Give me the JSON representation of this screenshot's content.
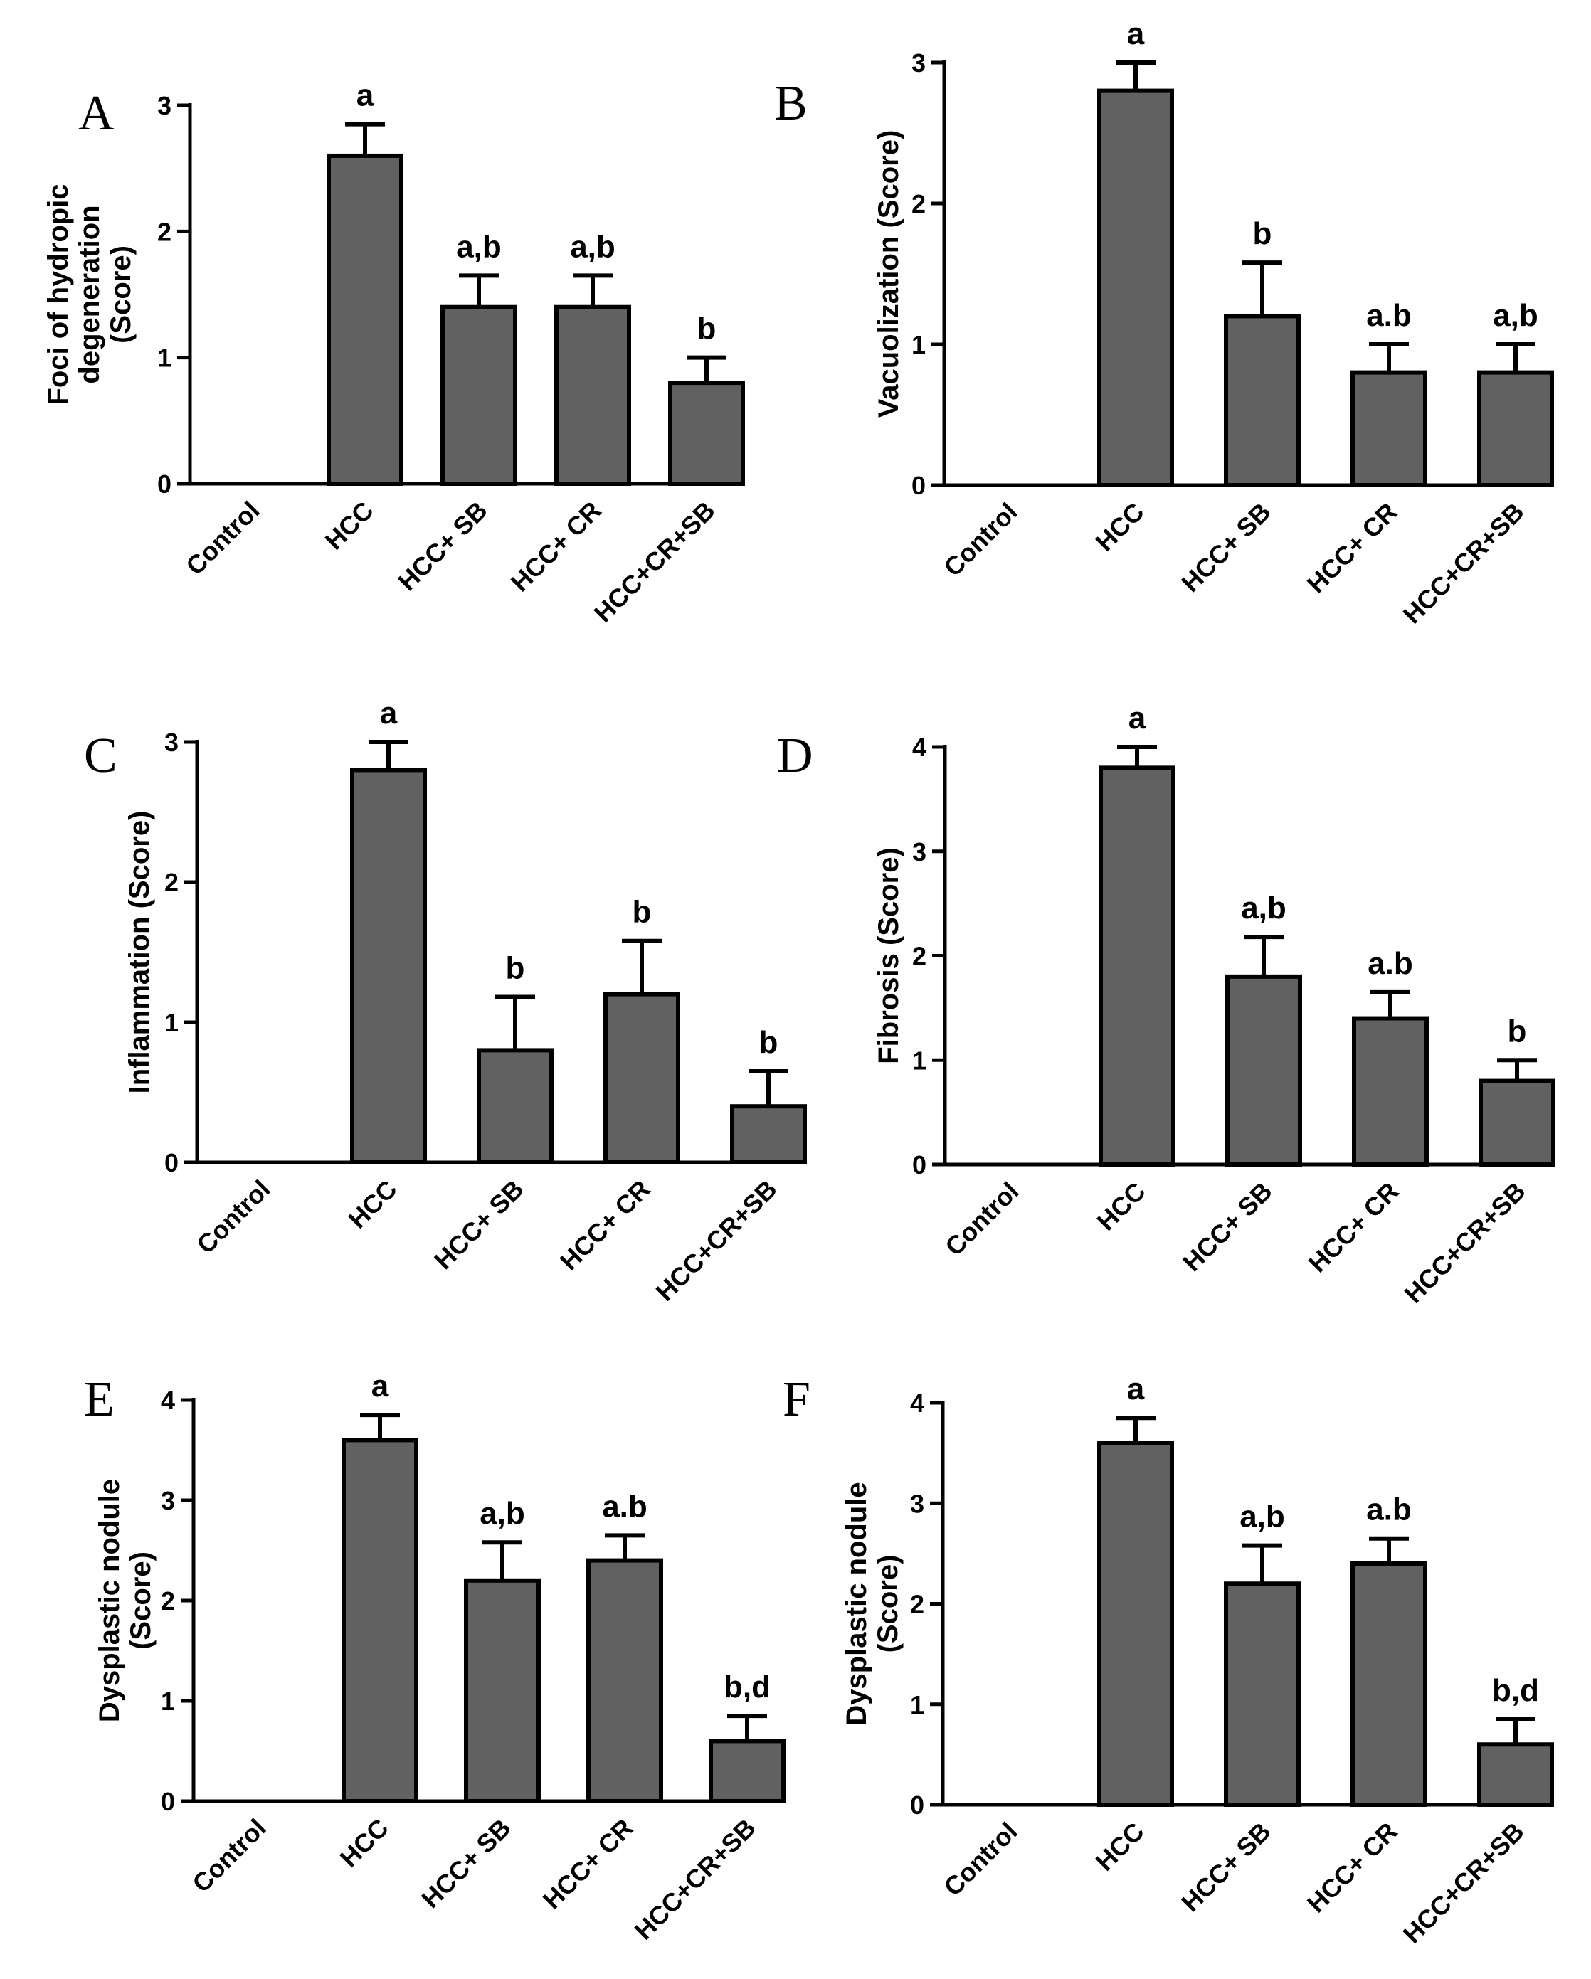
{
  "chart_data": [
    {
      "type": "bar",
      "panel": "A",
      "categories": [
        "Control",
        "HCC",
        "HCC+ SB",
        "HCC+ CR",
        "HCC+CR+SB"
      ],
      "values": [
        0,
        2.6,
        1.4,
        1.4,
        0.8
      ],
      "errors": [
        0,
        0.25,
        0.25,
        0.25,
        0.2
      ],
      "significance": [
        "",
        "a",
        "a,b",
        "a,b",
        "b"
      ],
      "ylabel_lines": [
        "Foci of hydropic",
        "degeneration",
        "(Score)"
      ],
      "ylim": [
        0,
        3
      ],
      "yticks": [
        0,
        1,
        2,
        3
      ]
    },
    {
      "type": "bar",
      "panel": "B",
      "categories": [
        "Control",
        "HCC",
        "HCC+ SB",
        "HCC+ CR",
        "HCC+CR+SB"
      ],
      "values": [
        0,
        2.8,
        1.2,
        0.8,
        0.8
      ],
      "errors": [
        0,
        0.2,
        0.38,
        0.2,
        0.2
      ],
      "significance": [
        "",
        "a",
        "b",
        "a.b",
        "a,b"
      ],
      "ylabel_lines": [
        "Vacuolization (Score)"
      ],
      "ylim": [
        0,
        3
      ],
      "yticks": [
        0,
        1,
        2,
        3
      ]
    },
    {
      "type": "bar",
      "panel": "C",
      "categories": [
        "Control",
        "HCC",
        "HCC+ SB",
        "HCC+ CR",
        "HCC+CR+SB"
      ],
      "values": [
        0,
        2.8,
        0.8,
        1.2,
        0.4
      ],
      "errors": [
        0,
        0.2,
        0.38,
        0.38,
        0.25
      ],
      "significance": [
        "",
        "a",
        "b",
        "b",
        "b"
      ],
      "ylabel_lines": [
        "Inflammation (Score)"
      ],
      "ylim": [
        0,
        3
      ],
      "yticks": [
        0,
        1,
        2,
        3
      ]
    },
    {
      "type": "bar",
      "panel": "D",
      "categories": [
        "Control",
        "HCC",
        "HCC+ SB",
        "HCC+ CR",
        "HCC+CR+SB"
      ],
      "values": [
        0,
        3.8,
        1.8,
        1.4,
        0.8
      ],
      "errors": [
        0,
        0.2,
        0.38,
        0.25,
        0.2
      ],
      "significance": [
        "",
        "a",
        "a,b",
        "a.b",
        "b"
      ],
      "ylabel_lines": [
        "Fibrosis (Score)"
      ],
      "ylim": [
        0,
        4
      ],
      "yticks": [
        0,
        1,
        2,
        3,
        4
      ]
    },
    {
      "type": "bar",
      "panel": "E",
      "categories": [
        "Control",
        "HCC",
        "HCC+ SB",
        "HCC+ CR",
        "HCC+CR+SB"
      ],
      "values": [
        0,
        3.6,
        2.2,
        2.4,
        0.6
      ],
      "errors": [
        0,
        0.25,
        0.38,
        0.25,
        0.25
      ],
      "significance": [
        "",
        "a",
        "a,b",
        "a.b",
        "b,d"
      ],
      "ylabel_lines": [
        "Dysplastic nodule",
        "(Score)"
      ],
      "ylim": [
        0,
        4
      ],
      "yticks": [
        0,
        1,
        2,
        3,
        4
      ]
    },
    {
      "type": "bar",
      "panel": "F",
      "categories": [
        "Control",
        "HCC",
        "HCC+ SB",
        "HCC+ CR",
        "HCC+CR+SB"
      ],
      "values": [
        0,
        3.6,
        2.2,
        2.4,
        0.6
      ],
      "errors": [
        0,
        0.25,
        0.38,
        0.25,
        0.25
      ],
      "significance": [
        "",
        "a",
        "a,b",
        "a.b",
        "b,d"
      ],
      "ylabel_lines": [
        "Dysplastic nodule",
        "(Score)"
      ],
      "ylim": [
        0,
        4
      ],
      "yticks": [
        0,
        1,
        2,
        3,
        4
      ]
    }
  ],
  "colors": {
    "bar_fill": "#616161",
    "outline": "#000000"
  }
}
